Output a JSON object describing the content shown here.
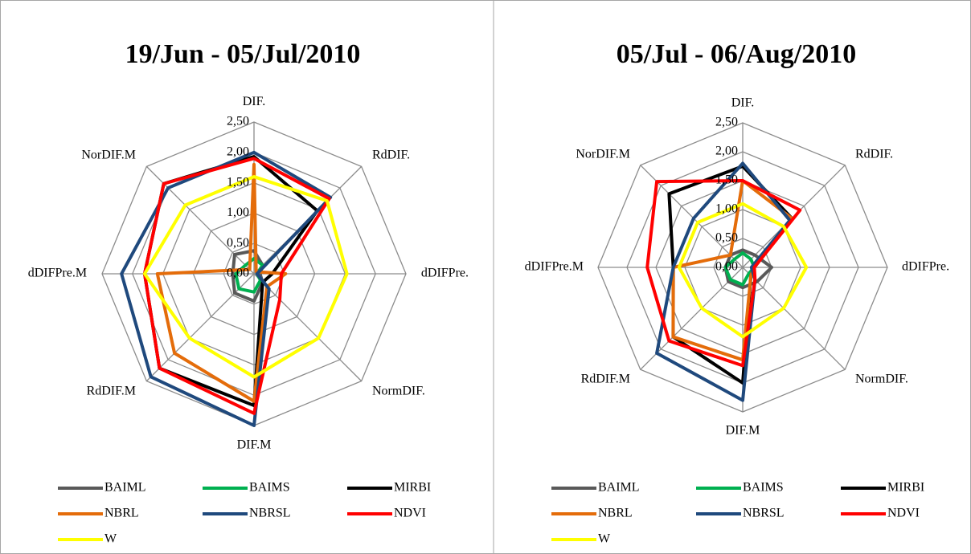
{
  "chart_data": [
    {
      "type": "radar",
      "title": "19/Jun - 05/Jul/2010",
      "categories": [
        "DIF.",
        "RdDIF.",
        "dDIFPre.",
        "NormDIF.",
        "DIF.M",
        "RdDIF.M",
        "dDIFPre.M",
        "NorDIF.M"
      ],
      "ylim": [
        0,
        2.5
      ],
      "yticks": [
        {
          "value": 0,
          "label": "0,00"
        },
        {
          "value": 0.5,
          "label": "0,50"
        },
        {
          "value": 1,
          "label": "1,00"
        },
        {
          "value": 1.5,
          "label": "1,50"
        },
        {
          "value": 2,
          "label": "2,00"
        },
        {
          "value": 2.5,
          "label": "2,50"
        }
      ],
      "series": [
        {
          "name": "BAIML",
          "color": "#595959",
          "values": [
            0.38,
            0.2,
            0.1,
            0.2,
            0.45,
            0.45,
            0.35,
            0.45
          ]
        },
        {
          "name": "BAIMS",
          "color": "#00b050",
          "values": [
            0.25,
            0.2,
            0.05,
            0.15,
            0.3,
            0.35,
            0.3,
            0.2
          ]
        },
        {
          "name": "MIRBI",
          "color": "#000000",
          "values": [
            1.93,
            1.47,
            0.3,
            0.2,
            2.17,
            2.2,
            1.8,
            2.1
          ]
        },
        {
          "name": "NBRL",
          "color": "#e46c0a",
          "values": [
            1.8,
            0.05,
            0.52,
            0.3,
            2.1,
            1.85,
            1.59,
            0.1
          ]
        },
        {
          "name": "NBRSL",
          "color": "#1f497d",
          "values": [
            2.0,
            1.78,
            0.05,
            0.35,
            2.5,
            2.4,
            2.18,
            2.0
          ]
        },
        {
          "name": "NDVI",
          "color": "#ff0000",
          "values": [
            1.9,
            1.75,
            0.45,
            0.6,
            2.3,
            2.2,
            1.8,
            2.1
          ]
        },
        {
          "name": "W",
          "color": "#ffff00",
          "values": [
            1.6,
            1.7,
            1.53,
            1.5,
            1.7,
            1.5,
            1.8,
            1.6
          ]
        }
      ]
    },
    {
      "type": "radar",
      "title": "05/Jul - 06/Aug/2010",
      "categories": [
        "DIF.",
        "RdDIF.",
        "dDIFPre.",
        "NormDIF.",
        "DIF.M",
        "RdDIF.M",
        "dDIFPre.M",
        "NorDIF.M"
      ],
      "ylim": [
        0,
        2.5
      ],
      "yticks": [
        {
          "value": 0,
          "label": "0,00"
        },
        {
          "value": 0.5,
          "label": "0,50"
        },
        {
          "value": 1,
          "label": "1,00"
        },
        {
          "value": 1.5,
          "label": "1,50"
        },
        {
          "value": 2,
          "label": "2,00"
        },
        {
          "value": 2.5,
          "label": "2,50"
        }
      ],
      "series": [
        {
          "name": "BAIML",
          "color": "#595959",
          "values": [
            0.3,
            0.3,
            0.5,
            0.35,
            0.35,
            0.35,
            0.3,
            0.3
          ]
        },
        {
          "name": "BAIMS",
          "color": "#00b050",
          "values": [
            0.25,
            0.2,
            0.2,
            0.15,
            0.3,
            0.3,
            0.3,
            0.2
          ]
        },
        {
          "name": "MIRBI",
          "color": "#000000",
          "values": [
            1.75,
            1.2,
            0.2,
            0.2,
            2.0,
            1.7,
            1.2,
            1.8
          ]
        },
        {
          "name": "NBRL",
          "color": "#e46c0a",
          "values": [
            1.5,
            1.2,
            0.2,
            0.2,
            1.6,
            1.7,
            1.2,
            0.3
          ]
        },
        {
          "name": "NBRSL",
          "color": "#1f497d",
          "values": [
            1.8,
            1.15,
            0.15,
            0.3,
            2.3,
            2.1,
            1.2,
            1.2
          ]
        },
        {
          "name": "NDVI",
          "color": "#ff0000",
          "values": [
            1.5,
            1.4,
            0.2,
            0.3,
            1.7,
            1.8,
            1.65,
            2.1
          ]
        },
        {
          "name": "W",
          "color": "#ffff00",
          "values": [
            1.1,
            1.0,
            1.1,
            1.0,
            1.2,
            1.0,
            1.1,
            1.1
          ]
        }
      ]
    }
  ]
}
